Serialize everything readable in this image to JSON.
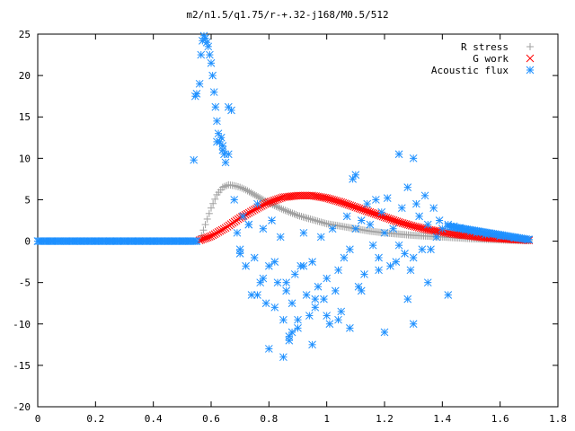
{
  "chart_data": {
    "type": "scatter",
    "title": "m2/n1.5/q1.75/r-+.32-j168/M0.5/512",
    "xlabel": "",
    "ylabel": "",
    "xlim": [
      0,
      1.8
    ],
    "ylim": [
      -20,
      25
    ],
    "xticks": [
      "0",
      "0.2",
      "0.4",
      "0.6",
      "0.8",
      "1",
      "1.2",
      "1.4",
      "1.6",
      "1.8"
    ],
    "yticks": [
      "25",
      "20",
      "15",
      "10",
      "5",
      "0",
      "-5",
      "-10",
      "-15",
      "-20"
    ],
    "grid": false,
    "legend_position": "top-right",
    "series": [
      {
        "name": "R stress",
        "marker": "plus",
        "color": "#a0a0a0",
        "x": [
          0.56,
          0.58,
          0.6,
          0.62,
          0.64,
          0.66,
          0.68,
          0.7,
          0.72,
          0.75,
          0.78,
          0.8,
          0.85,
          0.9,
          0.95,
          1.0,
          1.05,
          1.1,
          1.15,
          1.2,
          1.3,
          1.4,
          1.5,
          1.6,
          1.7
        ],
        "y": [
          0.0,
          2.0,
          4.0,
          5.6,
          6.5,
          6.8,
          6.7,
          6.5,
          6.2,
          5.6,
          5.0,
          4.6,
          3.8,
          3.1,
          2.6,
          2.1,
          1.8,
          1.5,
          1.2,
          1.0,
          0.7,
          0.5,
          0.3,
          0.15,
          0.05
        ]
      },
      {
        "name": "G work",
        "marker": "cross",
        "color": "#ff0000",
        "x": [
          0.56,
          0.6,
          0.65,
          0.7,
          0.75,
          0.8,
          0.85,
          0.9,
          0.95,
          1.0,
          1.05,
          1.1,
          1.15,
          1.2,
          1.25,
          1.3,
          1.35,
          1.4,
          1.45,
          1.5,
          1.55,
          1.6,
          1.65,
          1.7
        ],
        "y": [
          0.1,
          0.6,
          1.6,
          2.8,
          3.8,
          4.7,
          5.3,
          5.5,
          5.5,
          5.2,
          4.7,
          4.1,
          3.5,
          2.9,
          2.3,
          1.8,
          1.4,
          1.1,
          0.8,
          0.6,
          0.4,
          0.3,
          0.2,
          0.1
        ]
      },
      {
        "name": "Acoustic flux",
        "marker": "star",
        "color": "#1e90ff",
        "x": [
          0.0,
          0.05,
          0.1,
          0.15,
          0.2,
          0.25,
          0.3,
          0.35,
          0.4,
          0.45,
          0.5,
          0.55,
          0.54,
          0.545,
          0.55,
          0.56,
          0.565,
          0.57,
          0.575,
          0.58,
          0.585,
          0.59,
          0.595,
          0.6,
          0.605,
          0.61,
          0.615,
          0.62,
          0.625,
          0.63,
          0.635,
          0.64,
          0.645,
          0.65,
          0.66,
          0.67,
          0.68,
          0.69,
          0.7,
          0.71,
          0.72,
          0.73,
          0.74,
          0.75,
          0.76,
          0.77,
          0.78,
          0.79,
          0.8,
          0.81,
          0.82,
          0.83,
          0.84,
          0.85,
          0.86,
          0.87,
          0.88,
          0.89,
          0.9,
          0.91,
          0.92,
          0.93,
          0.94,
          0.95,
          0.96,
          0.97,
          0.98,
          0.99,
          1.0,
          1.01,
          1.02,
          1.03,
          1.04,
          1.05,
          1.06,
          1.07,
          1.08,
          1.09,
          1.1,
          1.11,
          1.12,
          1.13,
          1.14,
          1.15,
          1.16,
          1.17,
          1.18,
          1.19,
          1.2,
          1.21,
          1.22,
          1.23,
          1.24,
          1.25,
          1.26,
          1.27,
          1.28,
          1.29,
          1.3,
          1.31,
          1.32,
          1.33,
          1.34,
          1.35,
          1.36,
          1.37,
          1.38,
          1.39,
          1.4,
          1.42,
          1.44,
          1.46,
          1.48,
          1.5,
          1.52,
          1.55,
          1.6,
          1.65,
          1.7,
          0.87,
          0.88,
          0.85,
          0.9,
          0.95,
          1.0,
          1.08,
          1.2,
          1.3,
          0.73,
          0.76,
          0.8,
          1.1,
          1.25,
          1.3,
          0.62,
          0.64,
          0.66,
          0.7,
          0.78,
          0.82,
          0.86,
          0.92,
          0.96,
          1.04,
          1.12,
          1.18,
          1.28,
          1.35,
          1.42
        ],
        "y": [
          0,
          0,
          0,
          0,
          0,
          0,
          0,
          0,
          0,
          0,
          0,
          0,
          9.8,
          17.5,
          17.8,
          19.0,
          22.5,
          24.2,
          24.8,
          24.5,
          24.0,
          23.5,
          22.5,
          21.5,
          20.0,
          18.0,
          16.2,
          14.5,
          13.0,
          12.0,
          12.5,
          11.0,
          10.5,
          9.5,
          16.2,
          15.8,
          5.0,
          1.0,
          -1.5,
          3.0,
          -3.0,
          2.0,
          -6.5,
          -2.0,
          4.5,
          -5.0,
          1.5,
          -7.5,
          -3.0,
          2.5,
          -8.0,
          -5.0,
          0.5,
          -9.5,
          -6.0,
          -11.5,
          -7.5,
          -4.0,
          -10.5,
          -3.0,
          1.0,
          -6.5,
          -9.0,
          -2.5,
          -8.0,
          -5.5,
          0.5,
          -7.0,
          -4.5,
          -10.0,
          1.5,
          -6.0,
          -3.5,
          -8.5,
          -2.0,
          3.0,
          -1.0,
          7.5,
          1.5,
          -5.5,
          2.5,
          -4.0,
          4.5,
          2.0,
          -0.5,
          5.0,
          -2.0,
          3.5,
          1.0,
          5.2,
          -3.0,
          1.5,
          -2.5,
          -0.5,
          4.0,
          -1.5,
          6.5,
          -3.5,
          -2.0,
          4.5,
          3.0,
          -1.0,
          5.5,
          2.0,
          -1.0,
          4.0,
          0.5,
          2.5,
          1.5,
          2.0,
          1.8,
          1.6,
          1.4,
          1.2,
          1.0,
          0.8,
          0.6,
          0.4,
          0.2,
          -12.0,
          -11.0,
          -14.0,
          -9.5,
          -12.5,
          -9.0,
          -10.5,
          -11.0,
          -10.0,
          2.0,
          -6.5,
          -13.0,
          8.0,
          10.5,
          10.0,
          12.0,
          11.5,
          10.5,
          -1.0,
          -4.5,
          -2.5,
          -5.0,
          -3.0,
          -7.0,
          -9.5,
          -6.0,
          -3.5,
          -7.0,
          -5.0,
          -6.5
        ]
      }
    ]
  }
}
